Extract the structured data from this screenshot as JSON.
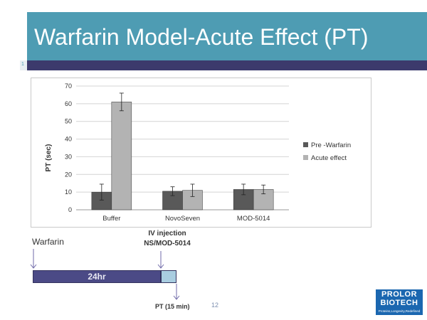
{
  "slide": {
    "title": "Warfarin Model-Acute Effect (PT)",
    "side_number": "1",
    "page_number": "12"
  },
  "chart_data": {
    "type": "bar",
    "title": "",
    "xlabel": "",
    "ylabel": "PT (sec)",
    "ylim": [
      0,
      70
    ],
    "yticks": [
      0,
      10,
      20,
      30,
      40,
      50,
      60,
      70
    ],
    "grid": true,
    "legend_position": "right",
    "categories": [
      "Buffer",
      "NovoSeven",
      "MOD-5014"
    ],
    "series": [
      {
        "name": "Pre -Warfarin",
        "color": "#595959",
        "values": [
          10,
          10.5,
          11.5
        ],
        "errors": [
          4.5,
          2.5,
          3
        ]
      },
      {
        "name": "Acute effect",
        "color": "#b3b3b3",
        "values": [
          61,
          11,
          11.5
        ],
        "errors": [
          5,
          3.5,
          2.5
        ]
      }
    ]
  },
  "timeline": {
    "warfarin_label": "Warfarin",
    "injection_label_line1": "IV injection",
    "injection_label_line2": "NS/MOD-5014",
    "duration_label": "24hr",
    "pt_label": "PT (15 min)"
  },
  "logo": {
    "line1": "PROLOR",
    "line2": "BIOTECH",
    "tagline": "Proteins,Longevity,Redefined"
  },
  "colors": {
    "title_bar": "#4e9cb3",
    "title_underline": "#3c3a6c",
    "timeline_bar": "#4b4a86",
    "timeline_pt": "#a9cde0",
    "logo_bg": "#1b67b0"
  }
}
